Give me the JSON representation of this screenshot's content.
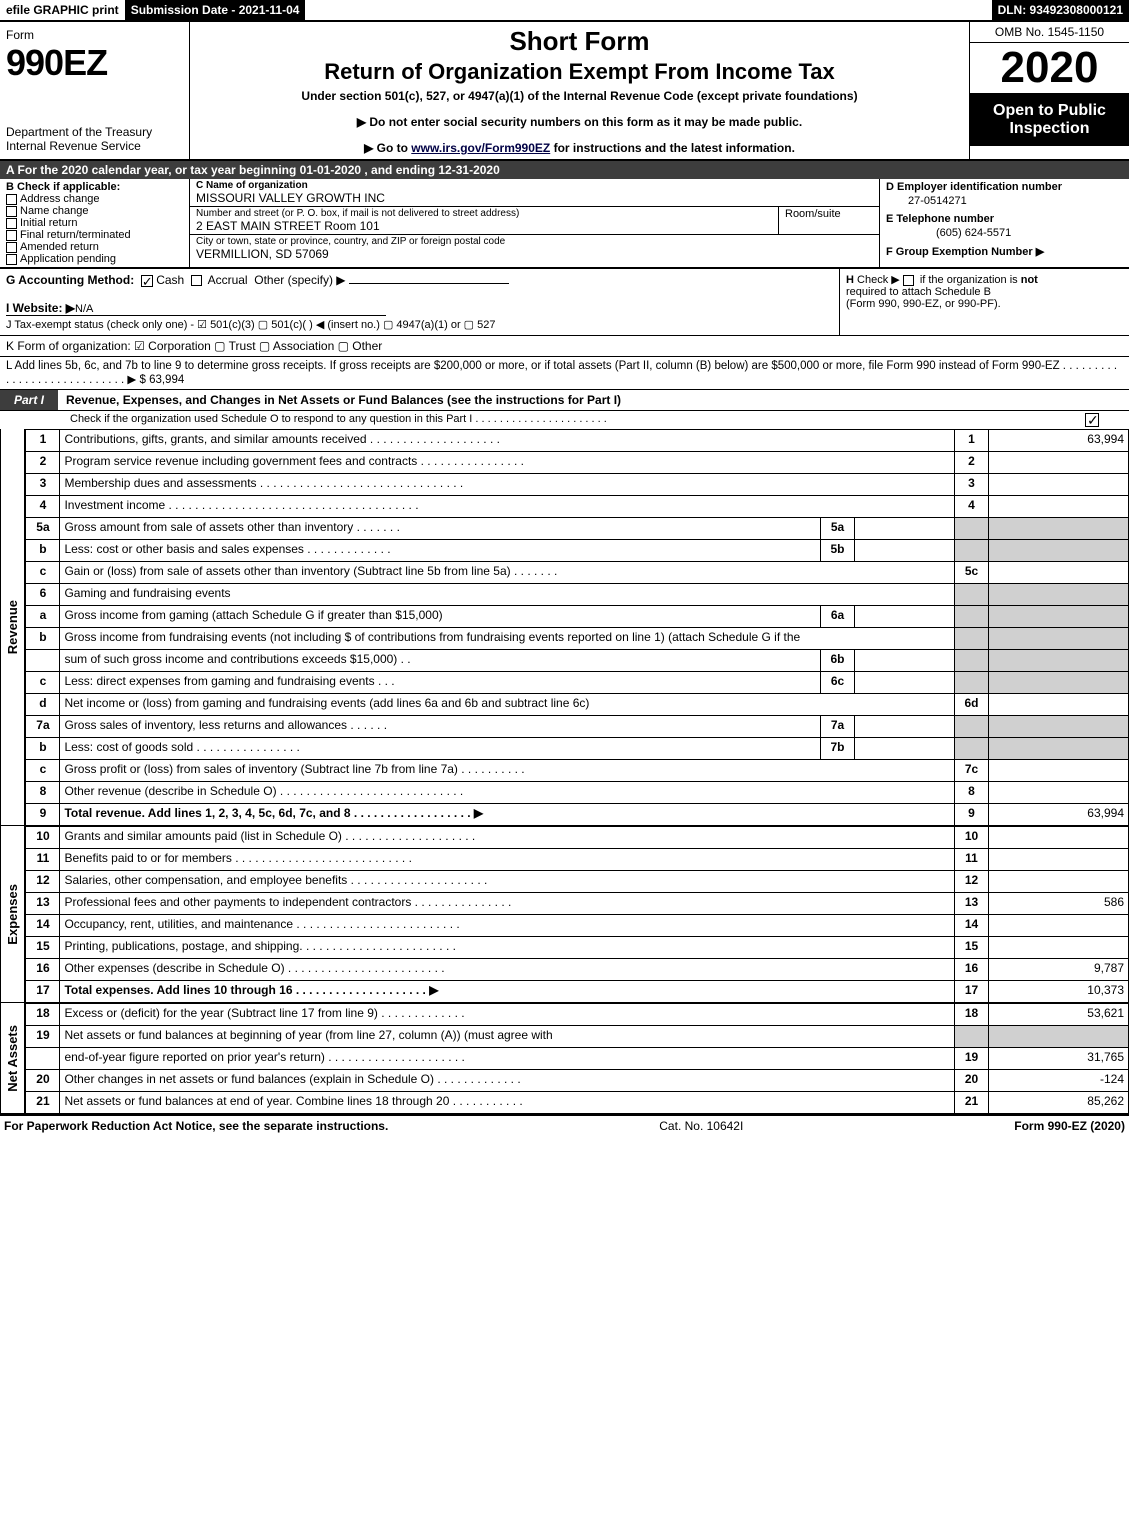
{
  "top": {
    "efile": "efile GRAPHIC print",
    "submission": "Submission Date - 2021-11-04",
    "dln": "DLN: 93492308000121"
  },
  "header": {
    "form_word": "Form",
    "form_no": "990EZ",
    "dept": "Department of the Treasury\nInternal Revenue Service",
    "short_form": "Short Form",
    "return_title": "Return of Organization Exempt From Income Tax",
    "under_section": "Under section 501(c), 527, or 4947(a)(1) of the Internal Revenue Code (except private foundations)",
    "notice1": "▶ Do not enter social security numbers on this form as it may be made public.",
    "notice2_pre": "▶ Go to ",
    "notice2_link": "www.irs.gov/Form990EZ",
    "notice2_post": " for instructions and the latest information.",
    "omb": "OMB No. 1545-1150",
    "year": "2020",
    "open": "Open to Public Inspection"
  },
  "a_row": "A For the 2020 calendar year, or tax year beginning 01-01-2020 , and ending 12-31-2020",
  "b": {
    "title": "B  Check if applicable:",
    "opts": [
      "Address change",
      "Name change",
      "Initial return",
      "Final return/terminated",
      "Amended return",
      "Application pending"
    ]
  },
  "c": {
    "title": "C Name of organization",
    "org": "MISSOURI VALLEY GROWTH INC",
    "street_label": "Number and street (or P. O. box, if mail is not delivered to street address)",
    "street": "2 EAST MAIN STREET Room 101",
    "room_label": "Room/suite",
    "city_label": "City or town, state or province, country, and ZIP or foreign postal code",
    "city": "VERMILLION, SD  57069"
  },
  "d": {
    "ein_label": "D Employer identification number",
    "ein": "27-0514271",
    "phone_label": "E Telephone number",
    "phone": "(605) 624-5571",
    "grp_label": "F Group Exemption Number   ▶"
  },
  "g": {
    "label": "G Accounting Method:",
    "cash": "Cash",
    "accr": "Accrual",
    "other": "Other (specify) ▶"
  },
  "h": {
    "l1": "H  Check ▶  ▢  if the organization is not",
    "l2": "required to attach Schedule B",
    "l3": "(Form 990, 990-EZ, or 990-PF)."
  },
  "i": {
    "label": "I Website: ▶",
    "val": "N/A"
  },
  "j": "J Tax-exempt status (check only one) -  ☑ 501(c)(3)  ▢ 501(c)(  ) ◀ (insert no.)  ▢ 4947(a)(1) or  ▢ 527",
  "k": "K Form of organization:   ☑ Corporation   ▢ Trust   ▢ Association   ▢ Other",
  "l": {
    "text": "L Add lines 5b, 6c, and 7b to line 9 to determine gross receipts. If gross receipts are $200,000 or more, or if total assets (Part II, column (B) below) are $500,000 or more, file Form 990 instead of Form 990-EZ  . . . . . . . . . . . . . . . . . . . . . . . . . . . .  ▶ $",
    "amount": "63,994"
  },
  "part1": {
    "tab": "Part I",
    "title": "Revenue, Expenses, and Changes in Net Assets or Fund Balances (see the instructions for Part I)",
    "check_o": "Check if the organization used Schedule O to respond to any question in this Part I . . . . . . . . . . . . . . . . . . . . . ."
  },
  "revenue_lines": [
    {
      "no": "1",
      "desc": "Contributions, gifts, grants, and similar amounts received . . . . . . . . . . . . . . . . . . . .",
      "rno": "1",
      "val": "63,994"
    },
    {
      "no": "2",
      "desc": "Program service revenue including government fees and contracts . . . . . . . . . . . . . . . .",
      "rno": "2",
      "val": ""
    },
    {
      "no": "3",
      "desc": "Membership dues and assessments . . . . . . . . . . . . . . . . . . . . . . . . . . . . . . .",
      "rno": "3",
      "val": ""
    },
    {
      "no": "4",
      "desc": "Investment income . . . . . . . . . . . . . . . . . . . . . . . . . . . . . . . . . . . . . .",
      "rno": "4",
      "val": ""
    },
    {
      "no": "5a",
      "desc": "Gross amount from sale of assets other than inventory . . . . . . .",
      "sub": "5a",
      "shade": true
    },
    {
      "no": "b",
      "desc": "Less: cost or other basis and sales expenses . . . . . . . . . . . . .",
      "sub": "5b",
      "shade": true
    },
    {
      "no": "c",
      "desc": "Gain or (loss) from sale of assets other than inventory (Subtract line 5b from line 5a) . . . . . . .",
      "rno": "5c",
      "val": ""
    },
    {
      "no": "6",
      "desc": "Gaming and fundraising events",
      "shade": true,
      "nosub": true
    },
    {
      "no": "a",
      "desc": "Gross income from gaming (attach Schedule G if greater than $15,000)",
      "sub": "6a",
      "shade": true
    },
    {
      "no": "b",
      "desc": "Gross income from fundraising events (not including $                       of contributions from fundraising events reported on line 1) (attach Schedule G if the",
      "shade": true,
      "nosub": true
    },
    {
      "no": "",
      "desc": "sum of such gross income and contributions exceeds $15,000)   . .",
      "sub": "6b",
      "shade": true
    },
    {
      "no": "c",
      "desc": "Less: direct expenses from gaming and fundraising events    . . .",
      "sub": "6c",
      "shade": true
    },
    {
      "no": "d",
      "desc": "Net income or (loss) from gaming and fundraising events (add lines 6a and 6b and subtract line 6c)",
      "rno": "6d",
      "val": ""
    },
    {
      "no": "7a",
      "desc": "Gross sales of inventory, less returns and allowances . . . . . .",
      "sub": "7a",
      "shade": true
    },
    {
      "no": "b",
      "desc": "Less: cost of goods sold         . . . . . . . . . . . . . . . .",
      "sub": "7b",
      "shade": true
    },
    {
      "no": "c",
      "desc": "Gross profit or (loss) from sales of inventory (Subtract line 7b from line 7a) . . . . . . . . . .",
      "rno": "7c",
      "val": ""
    },
    {
      "no": "8",
      "desc": "Other revenue (describe in Schedule O) . . . . . . . . . . . . . . . . . . . . . . . . . . . .",
      "rno": "8",
      "val": ""
    },
    {
      "no": "9",
      "desc": "Total revenue. Add lines 1, 2, 3, 4, 5c, 6d, 7c, and 8  . . . . . . . . . . . . . . . . . .   ▶",
      "rno": "9",
      "val": "63,994",
      "bold": true
    }
  ],
  "expense_lines": [
    {
      "no": "10",
      "desc": "Grants and similar amounts paid (list in Schedule O) . . . . . . . . . . . . . . . . . . . .",
      "rno": "10",
      "val": ""
    },
    {
      "no": "11",
      "desc": "Benefits paid to or for members       . . . . . . . . . . . . . . . . . . . . . . . . . . .",
      "rno": "11",
      "val": ""
    },
    {
      "no": "12",
      "desc": "Salaries, other compensation, and employee benefits . . . . . . . . . . . . . . . . . . . . .",
      "rno": "12",
      "val": ""
    },
    {
      "no": "13",
      "desc": "Professional fees and other payments to independent contractors . . . . . . . . . . . . . . .",
      "rno": "13",
      "val": "586"
    },
    {
      "no": "14",
      "desc": "Occupancy, rent, utilities, and maintenance . . . . . . . . . . . . . . . . . . . . . . . . .",
      "rno": "14",
      "val": ""
    },
    {
      "no": "15",
      "desc": "Printing, publications, postage, and shipping. . . . . . . . . . . . . . . . . . . . . . . .",
      "rno": "15",
      "val": ""
    },
    {
      "no": "16",
      "desc": "Other expenses (describe in Schedule O)    . . . . . . . . . . . . . . . . . . . . . . . .",
      "rno": "16",
      "val": "9,787"
    },
    {
      "no": "17",
      "desc": "Total expenses. Add lines 10 through 16      . . . . . . . . . . . . . . . . . . . .   ▶",
      "rno": "17",
      "val": "10,373",
      "bold": true
    }
  ],
  "netassets_lines": [
    {
      "no": "18",
      "desc": "Excess or (deficit) for the year (Subtract line 17 from line 9)        . . . . . . . . . . . . .",
      "rno": "18",
      "val": "53,621"
    },
    {
      "no": "19",
      "desc": "Net assets or fund balances at beginning of year (from line 27, column (A)) (must agree with",
      "shade": true,
      "nosub": true
    },
    {
      "no": "",
      "desc": "end-of-year figure reported on prior year's return) . . . . . . . . . . . . . . . . . . . . .",
      "rno": "19",
      "val": "31,765"
    },
    {
      "no": "20",
      "desc": "Other changes in net assets or fund balances (explain in Schedule O) . . . . . . . . . . . . .",
      "rno": "20",
      "val": "-124"
    },
    {
      "no": "21",
      "desc": "Net assets or fund balances at end of year. Combine lines 18 through 20 . . . . . . . . . . .",
      "rno": "21",
      "val": "85,262"
    }
  ],
  "side_labels": {
    "rev": "Revenue",
    "exp": "Expenses",
    "na": "Net Assets"
  },
  "footer": {
    "left": "For Paperwork Reduction Act Notice, see the separate instructions.",
    "mid": "Cat. No. 10642I",
    "right": "Form 990-EZ (2020)"
  }
}
